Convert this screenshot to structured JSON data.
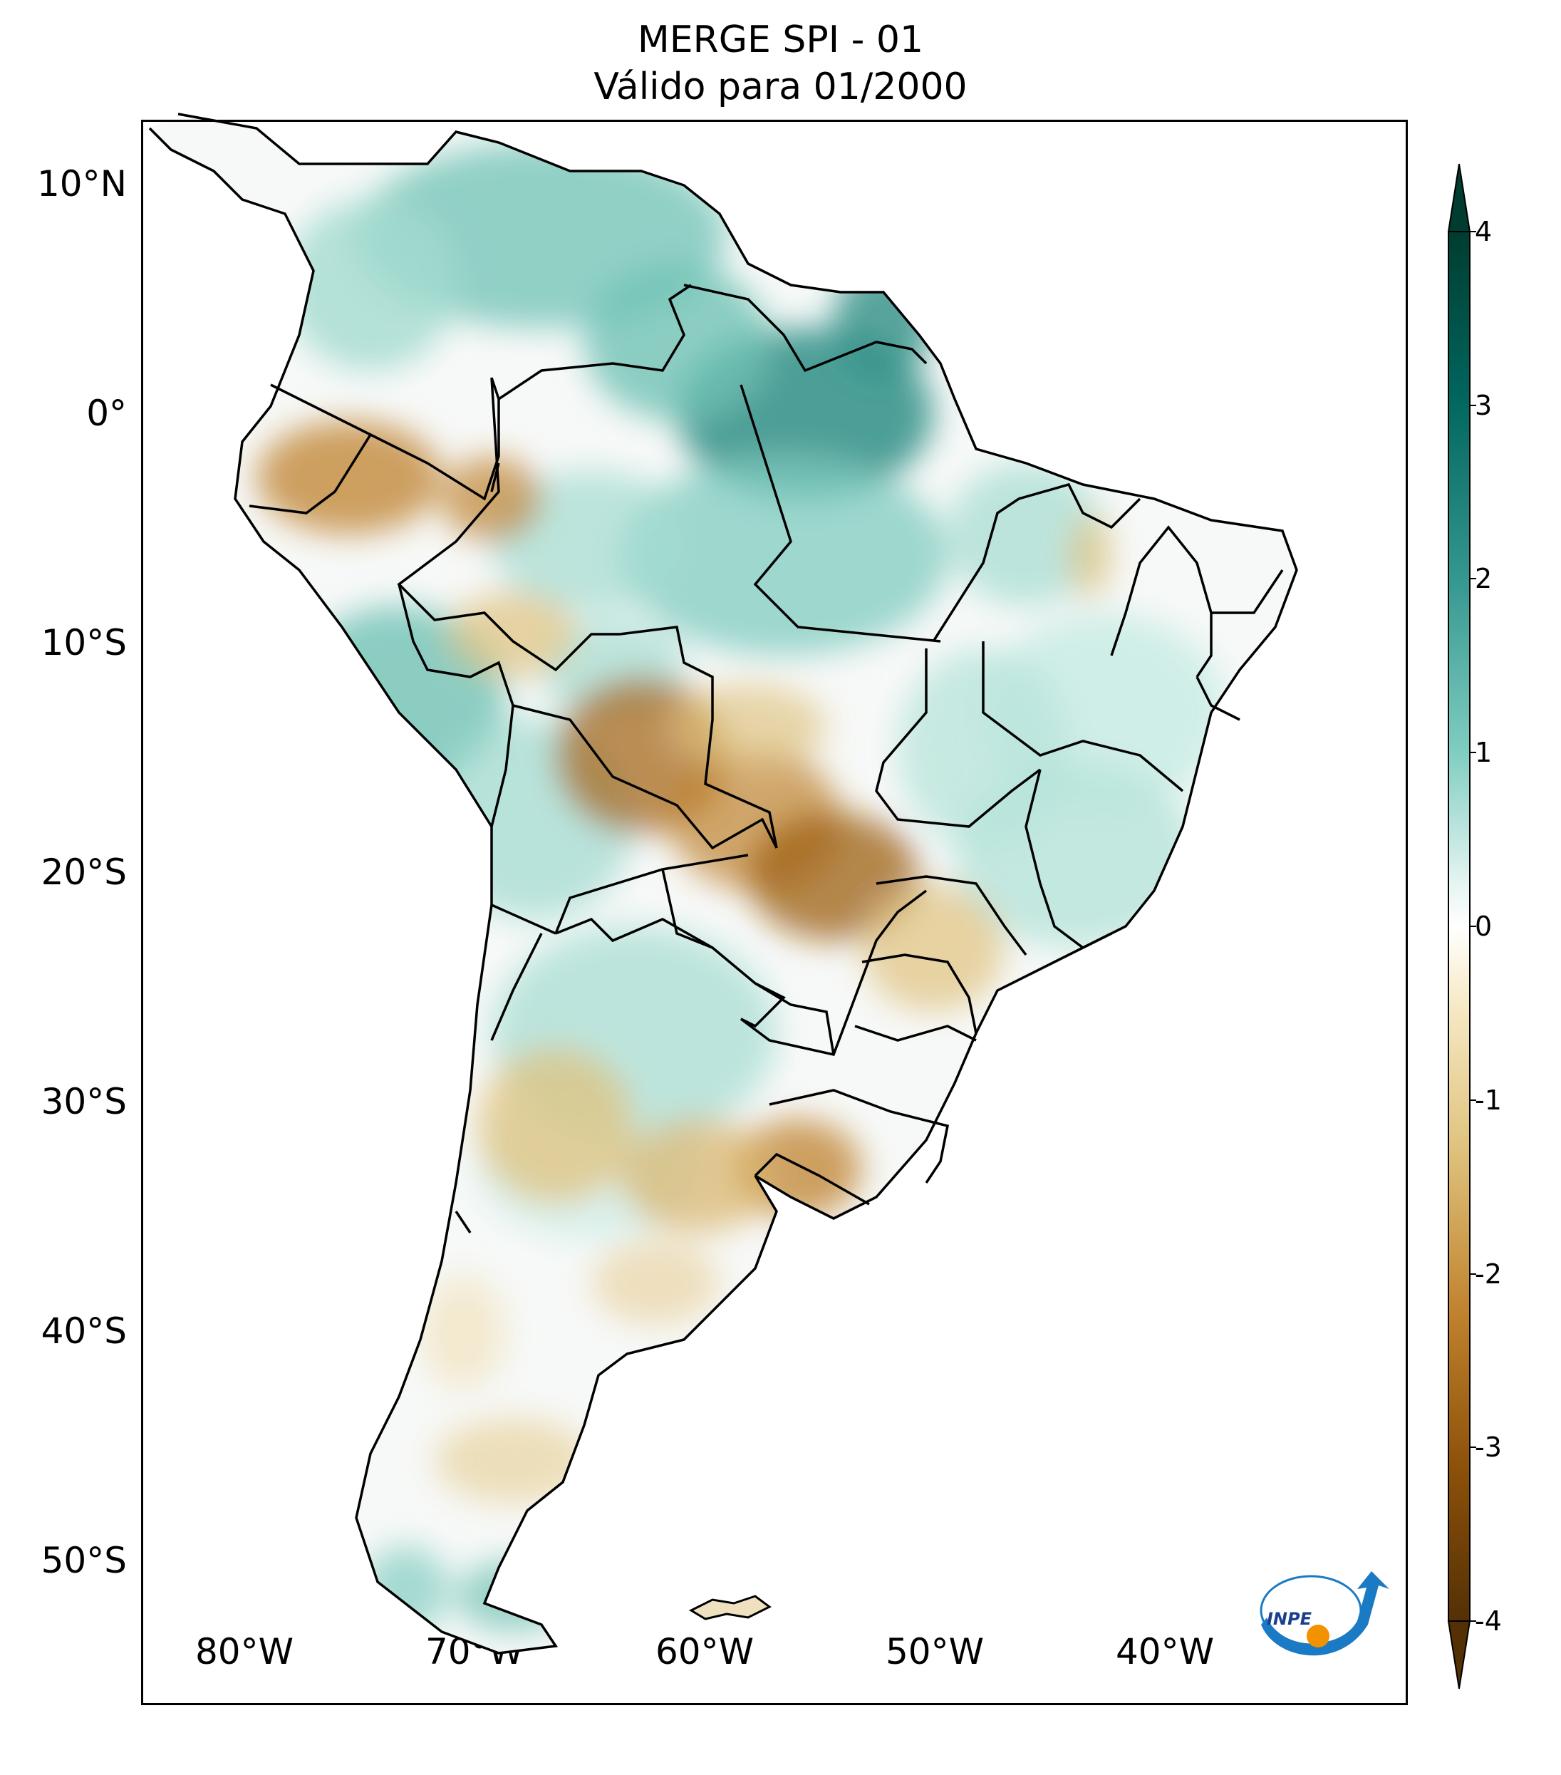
{
  "title": {
    "line1": "MERGE   SPI - 01",
    "line2": "Válido para 01/2000"
  },
  "axes": {
    "lat_ticks": [
      "10°N",
      "0°",
      "10°S",
      "20°S",
      "30°S",
      "40°S",
      "50°S"
    ],
    "lon_ticks": [
      "80°W",
      "70°W",
      "60°W",
      "50°W",
      "40°W"
    ]
  },
  "colorbar": {
    "ticks": [
      "4",
      "3",
      "2",
      "1",
      "0",
      "-1",
      "-2",
      "-3",
      "-4"
    ],
    "range": [
      -4,
      4
    ],
    "colormap": "BrBG",
    "extend": "both",
    "colors": {
      "min": "#543005",
      "low": "#bf812d",
      "neutral": "#f5f5f5",
      "high": "#35978f",
      "max": "#003c30"
    }
  },
  "map": {
    "region": "South America",
    "lon_range": [
      -85,
      -30
    ],
    "lat_range": [
      -56,
      13
    ]
  },
  "logo": {
    "text": "INPE",
    "colors": {
      "arrow": "#1a7bc4",
      "dot": "#f39200"
    }
  }
}
